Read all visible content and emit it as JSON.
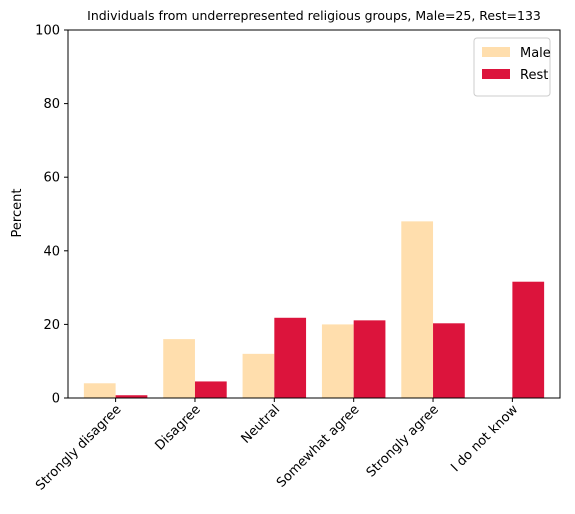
{
  "chart_data": {
    "type": "bar",
    "title": "Individuals from underrepresented religious groups, Male=25, Rest=133",
    "xlabel": "",
    "ylabel": "Percent",
    "ylim": [
      0,
      100
    ],
    "yticks": [
      0,
      20,
      40,
      60,
      80,
      100
    ],
    "categories": [
      "Strongly disagree",
      "Disagree",
      "Neutral",
      "Somewhat agree",
      "Strongly agree",
      "I do not know"
    ],
    "series": [
      {
        "name": "Male",
        "color": "#FFDEAD",
        "values": [
          4,
          16,
          12,
          20,
          48,
          0
        ]
      },
      {
        "name": "Rest",
        "color": "#DC143C",
        "values": [
          0.75,
          4.5,
          21.8,
          21.1,
          20.3,
          31.6
        ]
      }
    ],
    "legend": "top-right",
    "grid": false
  }
}
